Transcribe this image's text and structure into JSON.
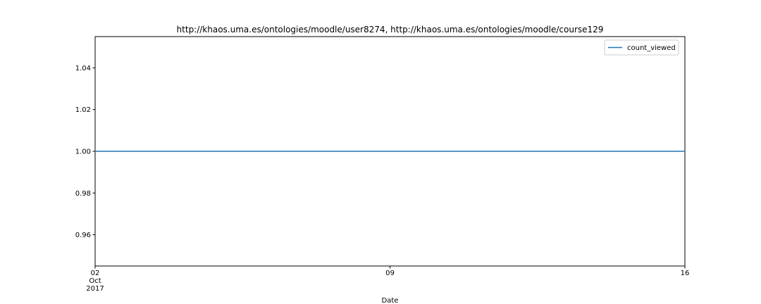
{
  "chart_data": {
    "type": "line",
    "title": "http://khaos.uma.es/ontologies/moodle/user8274, http://khaos.uma.es/ontologies/moodle/course129",
    "xlabel": "Date",
    "ylabel": "",
    "x_ticks": [
      {
        "value": "2017-10-02",
        "lines": [
          "02",
          "Oct",
          "2017"
        ]
      },
      {
        "value": "2017-10-09",
        "lines": [
          "09"
        ]
      },
      {
        "value": "2017-10-16",
        "lines": [
          "16"
        ]
      }
    ],
    "xlim": [
      "2017-10-02",
      "2017-10-16"
    ],
    "ylim": [
      0.945,
      1.055
    ],
    "y_ticks": [
      0.96,
      0.98,
      1.0,
      1.02,
      1.04
    ],
    "y_tick_labels": [
      "0.96",
      "0.98",
      "1.00",
      "1.02",
      "1.04"
    ],
    "series": [
      {
        "name": "count_viewed",
        "color": "#1f77b4",
        "x": [
          "2017-10-02",
          "2017-10-16"
        ],
        "values": [
          1.0,
          1.0
        ]
      }
    ],
    "legend": {
      "position": "top-right"
    },
    "grid": false
  }
}
